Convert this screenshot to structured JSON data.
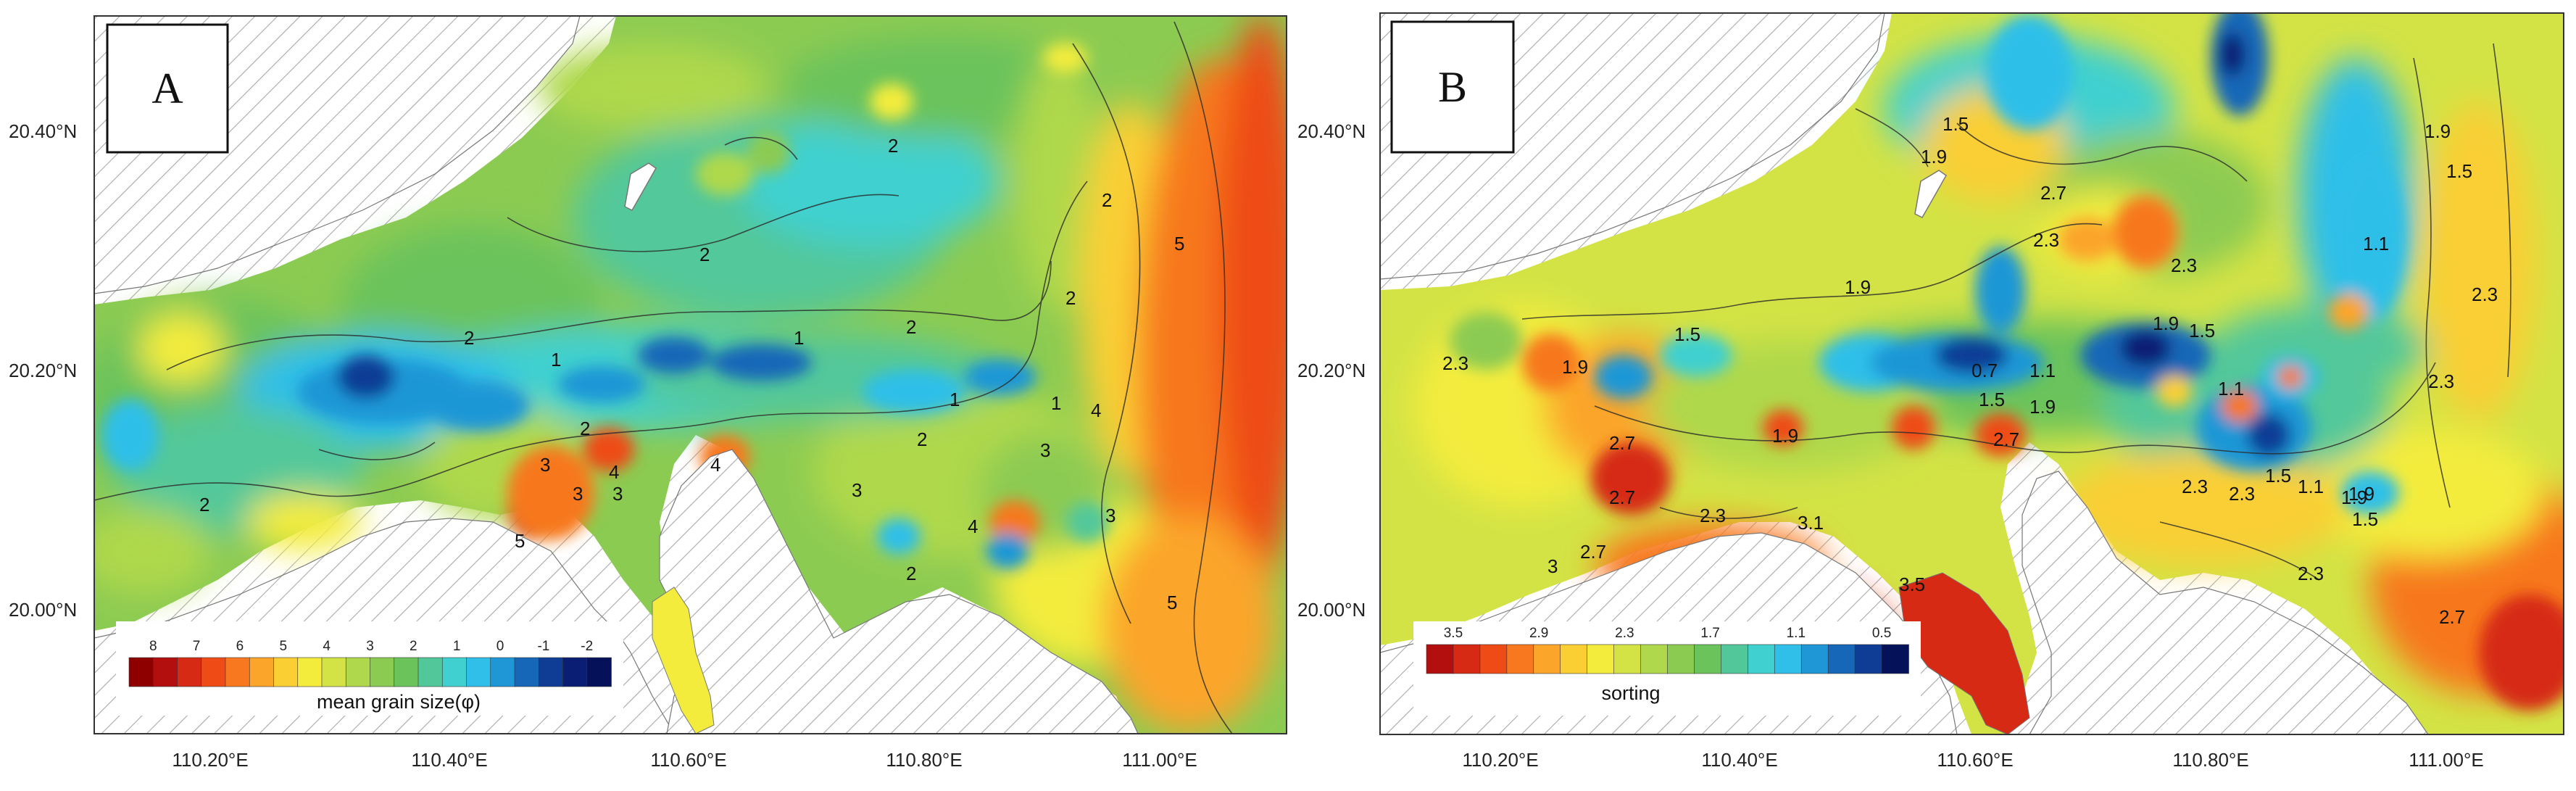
{
  "panels": [
    {
      "id": "A",
      "letter": "A",
      "lat_labels": [
        "20.40°N",
        "20.20°N",
        "20.00°N"
      ],
      "lon_labels": [
        "110.20°E",
        "110.40°E",
        "110.60°E",
        "110.80°E",
        "111.00°E"
      ],
      "legend": {
        "title": "mean grain size(φ)",
        "ticks": [
          "8",
          "7",
          "6",
          "5",
          "4",
          "3",
          "2",
          "1",
          "0",
          "-1",
          "-2"
        ],
        "colors": [
          "#8e0000",
          "#b30f0f",
          "#d62a14",
          "#ee4b17",
          "#f7781f",
          "#fba52b",
          "#f9cf34",
          "#f3ec3c",
          "#d3e345",
          "#afd84c",
          "#8ccb52",
          "#6bc35c",
          "#52c89a",
          "#3fd0cf",
          "#2fbfe8",
          "#1f97d6",
          "#1667b8",
          "#0f3c95",
          "#0a1f74",
          "#05125a"
        ]
      },
      "contour_labels": [
        "2",
        "2",
        "2",
        "2",
        "2",
        "2",
        "1",
        "1",
        "1",
        "1",
        "2",
        "3",
        "4",
        "3",
        "4",
        "3",
        "5",
        "2",
        "2",
        "3",
        "4",
        "3",
        "3",
        "4",
        "2",
        "5",
        "5"
      ]
    },
    {
      "id": "B",
      "letter": "B",
      "lat_labels": [
        "20.40°N",
        "20.20°N",
        "20.00°N"
      ],
      "lon_labels": [
        "110.20°E",
        "110.40°E",
        "110.60°E",
        "110.80°E",
        "111.00°E"
      ],
      "legend": {
        "title": "sorting",
        "ticks": [
          "3.5",
          "2.9",
          "2.3",
          "1.7",
          "1.1",
          "0.5"
        ],
        "colors": [
          "#b30f0f",
          "#d62a14",
          "#ee4b17",
          "#f7781f",
          "#fba52b",
          "#f9cf34",
          "#f3ec3c",
          "#d3e345",
          "#afd84c",
          "#8ccb52",
          "#6bc35c",
          "#52c89a",
          "#3fd0cf",
          "#2fbfe8",
          "#1f97d6",
          "#1667b8",
          "#0f3c95",
          "#05125a"
        ]
      },
      "contour_labels": [
        "1.5",
        "1.9",
        "2.7",
        "2.3",
        "2.3",
        "1.9",
        "1.5",
        "1.1",
        "2.3",
        "1.9",
        "1.5",
        "1.9",
        "2.3",
        "2.7",
        "0.7",
        "1.5",
        "1.9",
        "1.9",
        "1.1",
        "1.1",
        "2.7",
        "1.9",
        "1.5",
        "1.1",
        "2.3",
        "1.5",
        "1.9",
        "2.3",
        "2.3",
        "2.7",
        "3.1",
        "3.5",
        "3",
        "2.7",
        "2.3",
        "2.3",
        "1.9",
        "1.5",
        "2.7"
      ]
    }
  ],
  "colors": {
    "land_hatch": "#a9a9a9",
    "frame": "#333333",
    "contour_line": "#2a2a2a"
  }
}
